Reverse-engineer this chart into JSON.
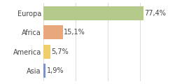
{
  "categories": [
    "Europa",
    "Africa",
    "America",
    "Asia"
  ],
  "values": [
    77.4,
    15.1,
    5.7,
    1.9
  ],
  "labels": [
    "77,4%",
    "15,1%",
    "5,7%",
    "1,9%"
  ],
  "bar_colors": [
    "#b5c98a",
    "#e8a87c",
    "#f0cc6a",
    "#8090c8"
  ],
  "background_color": "#ffffff",
  "grid_color": "#d8d8d8",
  "xlim": [
    0,
    100
  ],
  "label_fontsize": 7.0,
  "tick_fontsize": 7.0,
  "bar_height": 0.72
}
